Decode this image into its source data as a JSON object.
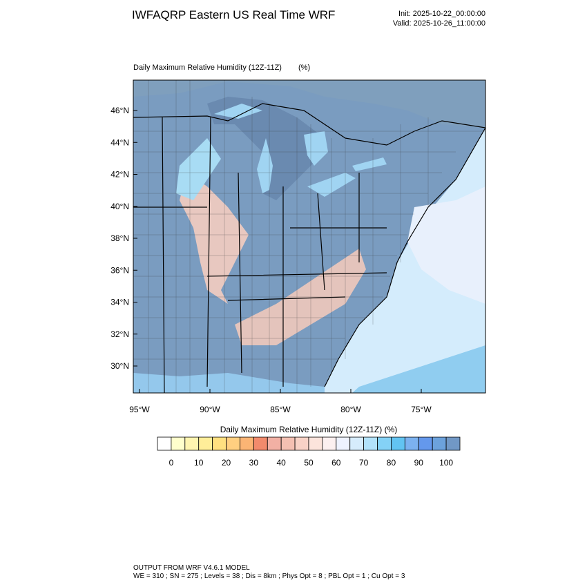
{
  "header": {
    "title": "IWFAQRP Eastern US Real Time WRF",
    "init": "Init: 2025-10-22_00:00:00",
    "valid": "Valid: 2025-10-26_11:00:00"
  },
  "map": {
    "title": "Daily Maximum Relative Humidity (12Z-11Z)",
    "units": "(%)",
    "lat_labels": [
      "46°N",
      "44°N",
      "42°N",
      "40°N",
      "38°N",
      "36°N",
      "34°N",
      "32°N",
      "30°N"
    ],
    "lon_labels": [
      "95°W",
      "90°W",
      "85°W",
      "80°W",
      "75°W"
    ]
  },
  "colorbar": {
    "title": "Daily Maximum Relative Humidity (12Z-11Z)  (%)",
    "labels": [
      "0",
      "10",
      "20",
      "30",
      "40",
      "50",
      "60",
      "70",
      "80",
      "90",
      "100"
    ]
  },
  "footer": {
    "line1": "OUTPUT FROM WRF V4.6.1 MODEL",
    "line2": "WE = 310 ; SN = 275 ; Levels = 38 ; Dis = 8km ; Phys Opt = 8 ; PBL Opt = 1 ; Cu Opt = 3"
  }
}
